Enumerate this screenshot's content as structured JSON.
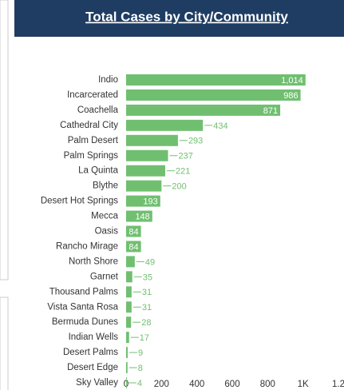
{
  "chart_data": {
    "type": "bar",
    "orientation": "horizontal",
    "title": "Total Cases by City/Community",
    "categories": [
      "Indio",
      "Incarcerated",
      "Coachella",
      "Cathedral City",
      "Palm Desert",
      "Palm Springs",
      "La Quinta",
      "Blythe",
      "Desert Hot Springs",
      "Mecca",
      "Oasis",
      "Rancho Mirage",
      "North Shore",
      "Garnet",
      "Thousand Palms",
      "Vista Santa Rosa",
      "Bermuda Dunes",
      "Indian Wells",
      "Desert Palms",
      "Desert Edge",
      "Sky Valley"
    ],
    "values": [
      1014,
      986,
      871,
      434,
      293,
      237,
      221,
      200,
      193,
      148,
      84,
      84,
      49,
      35,
      31,
      31,
      28,
      17,
      9,
      8,
      4
    ],
    "value_labels": [
      "1,014",
      "986",
      "871",
      "434",
      "293",
      "237",
      "221",
      "200",
      "193",
      "148",
      "84",
      "84",
      "49",
      "35",
      "31",
      "31",
      "28",
      "17",
      "9",
      "8",
      "4"
    ],
    "color": "#70bf70",
    "xlim": [
      0,
      1200
    ],
    "xticks": [
      0,
      200,
      400,
      600,
      800,
      {
        "value": 1000,
        "label": "1K"
      },
      {
        "value": 1200,
        "label": "1.2"
      }
    ]
  }
}
